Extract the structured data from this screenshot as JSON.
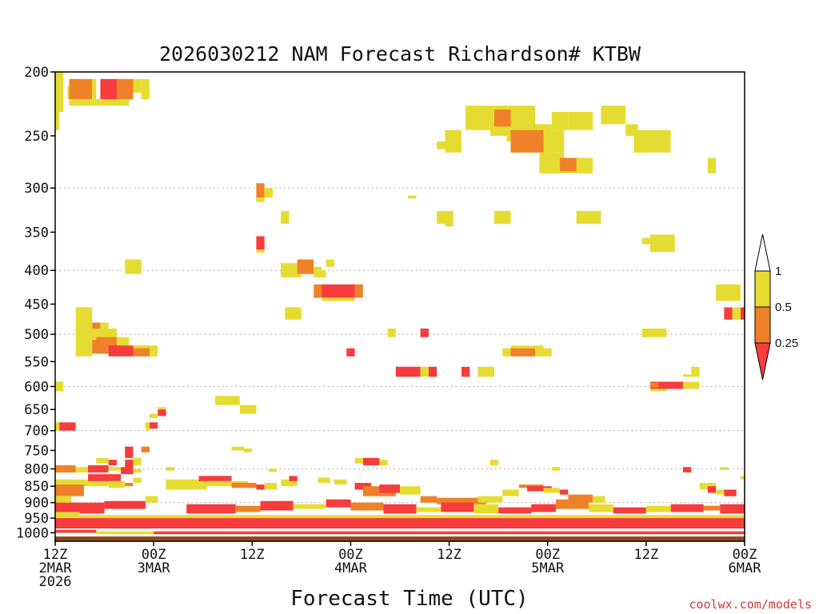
{
  "chart_data": {
    "type": "heatmap",
    "title": "2026030212 NAM Forecast Richardson# KTBW",
    "xlabel": "Forecast Time (UTC)",
    "ylabel": "",
    "credit": "coolwx.com/models",
    "x_unit": "hours since 12Z 2 MAR 2026",
    "xlim": [
      0,
      84
    ],
    "ylim": [
      1030,
      200
    ],
    "y_ticks": [
      200,
      250,
      300,
      350,
      400,
      450,
      500,
      550,
      600,
      650,
      700,
      750,
      800,
      850,
      900,
      950,
      1000
    ],
    "y_tick_labels": [
      "200",
      "250",
      "300",
      "350",
      "400",
      "450",
      "500",
      "550",
      "600",
      "650",
      "700",
      "750",
      "800",
      "850",
      "900",
      "950",
      "1000"
    ],
    "x_ticks": [
      {
        "x": 0,
        "lines": [
          "12Z",
          "2MAR",
          "2026"
        ]
      },
      {
        "x": 12,
        "lines": [
          "00Z",
          "3MAR"
        ]
      },
      {
        "x": 24,
        "lines": [
          "12Z"
        ]
      },
      {
        "x": 36,
        "lines": [
          "00Z",
          "4MAR"
        ]
      },
      {
        "x": 48,
        "lines": [
          "12Z"
        ]
      },
      {
        "x": 60,
        "lines": [
          "00Z",
          "5MAR"
        ]
      },
      {
        "x": 72,
        "lines": [
          "12Z"
        ]
      },
      {
        "x": 84,
        "lines": [
          "00Z",
          "6MAR"
        ]
      }
    ],
    "dotted_gridlines_p": [
      300,
      400,
      500,
      600,
      700,
      800,
      900
    ],
    "colorbar": {
      "labels": [
        "1",
        "0.5",
        "0.25"
      ],
      "bins": [
        {
          "range": "0.5-1",
          "color": "#e5dc32"
        },
        {
          "range": "0.25-0.5",
          "color": "#ef8128"
        },
        {
          "range": "<0.25",
          "color": "#f63c3c"
        },
        {
          "range": ">1",
          "color": "#ffffff"
        }
      ]
    },
    "colors": {
      "y": "#e5dc32",
      "o": "#ef8128",
      "r": "#f63c3c",
      "ground": "#8b4a1a"
    },
    "cells": [
      [
        "y",
        0,
        1,
        200,
        230
      ],
      [
        "y",
        0,
        0.5,
        230,
        245
      ],
      [
        "y",
        1.5,
        2,
        210,
        220
      ],
      [
        "o",
        1.7,
        4.5,
        205,
        220
      ],
      [
        "y",
        1.7,
        4.5,
        220,
        225
      ],
      [
        "y",
        4.5,
        5,
        205,
        225
      ],
      [
        "r",
        5.5,
        7.5,
        205,
        220
      ],
      [
        "y",
        5,
        7.5,
        220,
        225
      ],
      [
        "o",
        7.5,
        9.5,
        205,
        220
      ],
      [
        "y",
        7.5,
        9,
        220,
        225
      ],
      [
        "y",
        9.5,
        10.5,
        205,
        215
      ],
      [
        "y",
        10.5,
        11.5,
        205,
        220
      ],
      [
        "y",
        50,
        58.5,
        225,
        245
      ],
      [
        "y",
        53,
        55,
        240,
        250
      ],
      [
        "o",
        53.5,
        55.5,
        228,
        242
      ],
      [
        "y",
        55,
        57,
        245,
        255
      ],
      [
        "y",
        58,
        60.5,
        240,
        250
      ],
      [
        "y",
        60.5,
        62.5,
        230,
        245
      ],
      [
        "y",
        62.5,
        65.5,
        230,
        245
      ],
      [
        "y",
        47.5,
        49.5,
        245,
        265
      ],
      [
        "y",
        46.5,
        48,
        255,
        262
      ],
      [
        "y",
        55.5,
        62,
        245,
        265
      ],
      [
        "o",
        55.5,
        59.5,
        245,
        265
      ],
      [
        "y",
        59.5,
        61,
        255,
        265
      ],
      [
        "y",
        59,
        62,
        265,
        285
      ],
      [
        "y",
        61,
        64.5,
        270,
        285
      ],
      [
        "o",
        61.5,
        63.5,
        270,
        283
      ],
      [
        "y",
        64,
        65.5,
        270,
        285
      ],
      [
        "y",
        66.5,
        69.5,
        225,
        240
      ],
      [
        "y",
        69.5,
        71,
        240,
        250
      ],
      [
        "y",
        70.5,
        72,
        250,
        265
      ],
      [
        "y",
        70.5,
        75,
        245,
        265
      ],
      [
        "y",
        79.5,
        80.5,
        270,
        285
      ],
      [
        "o",
        24.5,
        25.5,
        295,
        310
      ],
      [
        "y",
        25.5,
        26.5,
        300,
        310
      ],
      [
        "y",
        24.5,
        25.5,
        310,
        315
      ],
      [
        "y",
        43,
        44,
        308,
        311
      ],
      [
        "y",
        27.5,
        28.5,
        325,
        340
      ],
      [
        "y",
        46.5,
        48.5,
        325,
        340
      ],
      [
        "y",
        47.5,
        48.5,
        340,
        343
      ],
      [
        "y",
        53.5,
        55.5,
        325,
        340
      ],
      [
        "y",
        63.5,
        66.5,
        325,
        340
      ],
      [
        "r",
        24.5,
        25.5,
        355,
        372
      ],
      [
        "y",
        24.5,
        25.5,
        372,
        376
      ],
      [
        "y",
        71.5,
        72.5,
        357,
        365
      ],
      [
        "y",
        72.5,
        75.5,
        353,
        375
      ],
      [
        "y",
        8.5,
        10.5,
        385,
        405
      ],
      [
        "y",
        27.5,
        30,
        390,
        410
      ],
      [
        "o",
        29.5,
        31.5,
        385,
        405
      ],
      [
        "y",
        31.5,
        32.5,
        395,
        410
      ],
      [
        "y",
        33,
        34,
        385,
        395
      ],
      [
        "y",
        32,
        33,
        400,
        410
      ],
      [
        "o",
        31.5,
        32.5,
        420,
        440
      ],
      [
        "r",
        32.5,
        36.5,
        420,
        440
      ],
      [
        "o",
        36.5,
        37.5,
        420,
        440
      ],
      [
        "y",
        32.5,
        36.5,
        440,
        445
      ],
      [
        "y",
        28,
        30,
        455,
        475
      ],
      [
        "y",
        80.5,
        83.5,
        420,
        445
      ],
      [
        "r",
        81.5,
        82.5,
        455,
        475
      ],
      [
        "y",
        82.5,
        83.5,
        455,
        475
      ],
      [
        "r",
        83.5,
        84,
        455,
        475
      ],
      [
        "y",
        2.5,
        4.5,
        455,
        540
      ],
      [
        "o",
        4.5,
        5.5,
        480,
        535
      ],
      [
        "y",
        5.5,
        6.5,
        480,
        500
      ],
      [
        "y",
        4.5,
        7.5,
        490,
        510
      ],
      [
        "o",
        5,
        7.5,
        505,
        535
      ],
      [
        "y",
        7.5,
        9,
        505,
        525
      ],
      [
        "r",
        6.5,
        9.5,
        520,
        540
      ],
      [
        "o",
        9.5,
        11.5,
        520,
        540
      ],
      [
        "y",
        9.5,
        11.5,
        520,
        525
      ],
      [
        "y",
        11.5,
        12.5,
        520,
        540
      ],
      [
        "y",
        40.5,
        41.5,
        490,
        505
      ],
      [
        "r",
        44.5,
        45.5,
        490,
        505
      ],
      [
        "y",
        71.5,
        74.5,
        490,
        505
      ],
      [
        "r",
        35.5,
        36.5,
        525,
        540
      ],
      [
        "y",
        54.5,
        55.5,
        525,
        540
      ],
      [
        "y",
        55.5,
        56.5,
        520,
        530
      ],
      [
        "o",
        55.5,
        58.5,
        525,
        540
      ],
      [
        "y",
        58.5,
        60.5,
        525,
        540
      ],
      [
        "y",
        56.5,
        59.5,
        520,
        525
      ],
      [
        "r",
        41.5,
        44.5,
        560,
        580
      ],
      [
        "y",
        44.5,
        45.5,
        560,
        580
      ],
      [
        "r",
        45.5,
        46.5,
        560,
        580
      ],
      [
        "r",
        49.5,
        50.5,
        560,
        580
      ],
      [
        "y",
        51.5,
        53.5,
        560,
        580
      ],
      [
        "y",
        77.5,
        78.5,
        560,
        580
      ],
      [
        "y",
        76.5,
        77.5,
        575,
        580
      ],
      [
        "r",
        72.5,
        76.5,
        590,
        605
      ],
      [
        "y",
        72.5,
        74.5,
        605,
        610
      ],
      [
        "o",
        72.5,
        73.5,
        592,
        602
      ],
      [
        "y",
        76.5,
        78.5,
        590,
        605
      ],
      [
        "y",
        0,
        1,
        590,
        610
      ],
      [
        "y",
        19.5,
        22.5,
        620,
        640
      ],
      [
        "y",
        22.5,
        24.5,
        640,
        660
      ],
      [
        "r",
        12.5,
        13.5,
        650,
        665
      ],
      [
        "y",
        11.5,
        12.5,
        660,
        670
      ],
      [
        "y",
        12.5,
        13.5,
        645,
        650
      ],
      [
        "r",
        0.5,
        2.5,
        680,
        700
      ],
      [
        "y",
        0,
        0.5,
        680,
        700
      ],
      [
        "r",
        11.5,
        12.5,
        680,
        695
      ],
      [
        "y",
        11,
        11.5,
        680,
        700
      ],
      [
        "r",
        8.5,
        9.5,
        740,
        770
      ],
      [
        "o",
        10.5,
        11.5,
        740,
        755
      ],
      [
        "y",
        21.5,
        23,
        740,
        750
      ],
      [
        "y",
        23,
        24,
        745,
        755
      ],
      [
        "y",
        5,
        6.5,
        770,
        785
      ],
      [
        "r",
        6.5,
        7.5,
        775,
        790
      ],
      [
        "r",
        8.5,
        9.5,
        775,
        800
      ],
      [
        "y",
        9.5,
        10.5,
        770,
        790
      ],
      [
        "y",
        53,
        54,
        775,
        790
      ],
      [
        "r",
        37.5,
        39.5,
        770,
        790
      ],
      [
        "y",
        36.5,
        37.5,
        770,
        785
      ],
      [
        "y",
        39.5,
        40.5,
        775,
        790
      ],
      [
        "o",
        0,
        2.5,
        790,
        810
      ],
      [
        "y",
        2.5,
        4,
        795,
        810
      ],
      [
        "r",
        4,
        6.5,
        790,
        810
      ],
      [
        "y",
        6.5,
        8,
        795,
        805
      ],
      [
        "r",
        8,
        9.5,
        795,
        815
      ],
      [
        "y",
        9.5,
        10.5,
        800,
        810
      ],
      [
        "y",
        13.5,
        14.5,
        795,
        805
      ],
      [
        "y",
        26,
        27,
        800,
        808
      ],
      [
        "y",
        60.5,
        61.5,
        795,
        805
      ],
      [
        "r",
        76.5,
        77.5,
        795,
        810
      ],
      [
        "y",
        81,
        82,
        795,
        803
      ],
      [
        "y",
        83.5,
        84,
        820,
        830
      ],
      [
        "y",
        0,
        3.5,
        830,
        870
      ],
      [
        "o",
        0,
        3.5,
        845,
        880
      ],
      [
        "y",
        3.5,
        6.5,
        830,
        850
      ],
      [
        "r",
        4,
        8,
        815,
        835
      ],
      [
        "y",
        6.5,
        8.5,
        835,
        855
      ],
      [
        "o",
        8.5,
        9.5,
        840,
        850
      ],
      [
        "y",
        9.5,
        10.5,
        825,
        840
      ],
      [
        "y",
        0,
        2,
        880,
        900
      ],
      [
        "y",
        13.5,
        18.5,
        830,
        860
      ],
      [
        "r",
        17.5,
        21.5,
        820,
        835
      ],
      [
        "y",
        18.5,
        23.5,
        835,
        850
      ],
      [
        "o",
        21.5,
        24.5,
        840,
        855
      ],
      [
        "r",
        24.5,
        25.5,
        845,
        860
      ],
      [
        "y",
        25.5,
        27,
        840,
        860
      ],
      [
        "y",
        27.5,
        29.5,
        830,
        850
      ],
      [
        "r",
        28.5,
        29.5,
        820,
        835
      ],
      [
        "y",
        32,
        33.5,
        825,
        840
      ],
      [
        "y",
        34,
        35.5,
        830,
        845
      ],
      [
        "r",
        36.5,
        38.5,
        840,
        860
      ],
      [
        "o",
        37.5,
        41.5,
        850,
        880
      ],
      [
        "r",
        39.5,
        42,
        845,
        870
      ],
      [
        "y",
        42,
        44.5,
        850,
        875
      ],
      [
        "o",
        44.5,
        46.5,
        880,
        900
      ],
      [
        "o",
        46.5,
        52.5,
        885,
        905
      ],
      [
        "y",
        51.5,
        54.5,
        880,
        900
      ],
      [
        "y",
        54.5,
        56.5,
        860,
        880
      ],
      [
        "o",
        56.5,
        59.5,
        845,
        855
      ],
      [
        "r",
        57.5,
        60.5,
        850,
        865
      ],
      [
        "y",
        59.5,
        61.5,
        855,
        870
      ],
      [
        "r",
        61.5,
        62.5,
        860,
        875
      ],
      [
        "o",
        62.5,
        65.5,
        875,
        900
      ],
      [
        "y",
        65.5,
        67,
        880,
        900
      ],
      [
        "y",
        78.5,
        80.5,
        840,
        860
      ],
      [
        "r",
        79.5,
        80.5,
        850,
        870
      ],
      [
        "y",
        80.5,
        81.5,
        860,
        875
      ],
      [
        "r",
        81.5,
        83,
        860,
        880
      ],
      [
        "r",
        0,
        6,
        900,
        935
      ],
      [
        "y",
        0,
        3,
        930,
        945
      ],
      [
        "r",
        6,
        11,
        895,
        920
      ],
      [
        "y",
        11,
        12.5,
        880,
        900
      ],
      [
        "r",
        16,
        22,
        905,
        935
      ],
      [
        "o",
        22,
        25,
        910,
        930
      ],
      [
        "r",
        25,
        29,
        895,
        925
      ],
      [
        "y",
        29,
        33,
        905,
        920
      ],
      [
        "r",
        33,
        36,
        890,
        915
      ],
      [
        "o",
        36,
        40,
        900,
        925
      ],
      [
        "r",
        40,
        44,
        905,
        935
      ],
      [
        "y",
        44,
        47,
        915,
        930
      ],
      [
        "r",
        47,
        51,
        900,
        930
      ],
      [
        "y",
        51,
        54,
        905,
        935
      ],
      [
        "r",
        54,
        58,
        915,
        935
      ],
      [
        "r",
        58,
        61,
        905,
        930
      ],
      [
        "o",
        61,
        65,
        890,
        920
      ],
      [
        "y",
        65,
        68,
        905,
        930
      ],
      [
        "r",
        68,
        72,
        915,
        935
      ],
      [
        "y",
        72,
        75,
        910,
        930
      ],
      [
        "r",
        75,
        79,
        905,
        930
      ],
      [
        "o",
        79,
        81,
        910,
        925
      ],
      [
        "r",
        81,
        84,
        905,
        935
      ],
      [
        "r",
        0,
        84,
        950,
        985
      ],
      [
        "y",
        0,
        84,
        940,
        950
      ],
      [
        "r",
        0,
        5,
        990,
        1000
      ],
      [
        "y",
        5,
        12,
        995,
        1005
      ],
      [
        "r",
        12,
        84,
        995,
        1005
      ]
    ]
  }
}
